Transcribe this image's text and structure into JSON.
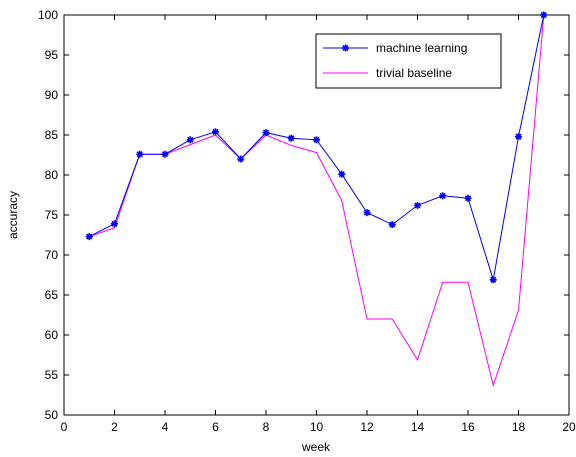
{
  "chart_data": {
    "type": "line",
    "title": "",
    "xlabel": "week",
    "ylabel": "accuracy",
    "xlim": [
      0,
      20
    ],
    "ylim": [
      50,
      100
    ],
    "xticks": [
      "0",
      "2",
      "4",
      "6",
      "8",
      "10",
      "12",
      "14",
      "16",
      "18",
      "20"
    ],
    "yticks": [
      "50",
      "55",
      "60",
      "65",
      "70",
      "75",
      "80",
      "85",
      "90",
      "95",
      "100"
    ],
    "grid": false,
    "legend_position": "top-right",
    "series": [
      {
        "name": "machine learning",
        "color": "#0000ff",
        "marker": "star",
        "x": [
          1,
          2,
          3,
          4,
          5,
          6,
          7,
          8,
          9,
          10,
          11,
          12,
          13,
          14,
          15,
          16,
          17,
          18,
          19
        ],
        "y": [
          72.3,
          73.9,
          82.6,
          82.6,
          84.4,
          85.4,
          82.0,
          85.3,
          84.6,
          84.4,
          80.1,
          75.3,
          73.8,
          76.2,
          77.4,
          77.1,
          66.9,
          84.8,
          100
        ]
      },
      {
        "name": "trivial baseline",
        "color": "#ff00ff",
        "marker": "none",
        "x": [
          1,
          2,
          3,
          4,
          5,
          6,
          7,
          8,
          9,
          10,
          11,
          12,
          13,
          14,
          15,
          16,
          17,
          18,
          19
        ],
        "y": [
          72.3,
          73.4,
          82.6,
          82.6,
          83.8,
          85.0,
          82.0,
          85.0,
          83.7,
          82.8,
          76.8,
          62.0,
          62.0,
          56.9,
          66.6,
          66.6,
          53.7,
          63.1,
          100
        ]
      }
    ]
  }
}
